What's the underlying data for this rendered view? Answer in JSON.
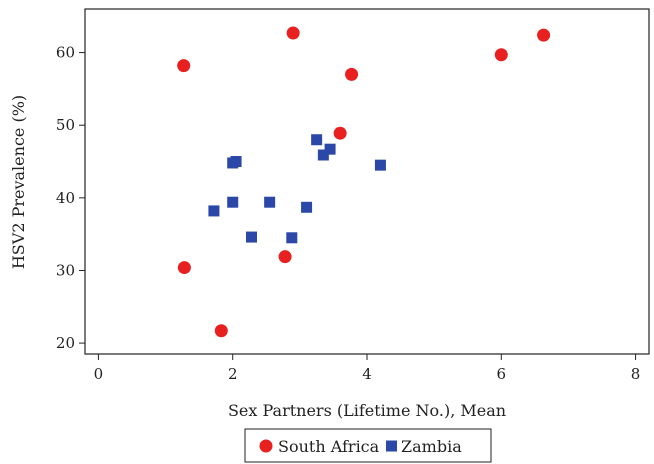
{
  "chart_data": {
    "type": "scatter",
    "title": "",
    "xlabel": "Sex Partners (Lifetime No.), Mean",
    "ylabel": "HSV2 Prevalence (%)",
    "xlim": [
      -0.2,
      8.2
    ],
    "ylim": [
      18.5,
      66
    ],
    "xticks": [
      0,
      2,
      4,
      6,
      8
    ],
    "yticks": [
      20,
      30,
      40,
      50,
      60
    ],
    "grid": false,
    "legend_position": "bottom-center",
    "series": [
      {
        "name": "South Africa",
        "marker": "circle",
        "color": "#e8201f",
        "points": [
          {
            "x": 1.27,
            "y": 58.2
          },
          {
            "x": 2.9,
            "y": 62.7
          },
          {
            "x": 3.77,
            "y": 57.0
          },
          {
            "x": 6.0,
            "y": 59.7
          },
          {
            "x": 6.63,
            "y": 62.4
          },
          {
            "x": 3.6,
            "y": 48.9
          },
          {
            "x": 1.28,
            "y": 30.4
          },
          {
            "x": 2.78,
            "y": 31.9
          },
          {
            "x": 1.83,
            "y": 21.7
          }
        ]
      },
      {
        "name": "Zambia",
        "marker": "square",
        "color": "#2b48a8",
        "points": [
          {
            "x": 3.25,
            "y": 48.0
          },
          {
            "x": 3.45,
            "y": 46.7
          },
          {
            "x": 3.35,
            "y": 45.9
          },
          {
            "x": 2.05,
            "y": 45.0
          },
          {
            "x": 2.0,
            "y": 44.8
          },
          {
            "x": 4.2,
            "y": 44.5
          },
          {
            "x": 2.0,
            "y": 39.4
          },
          {
            "x": 2.55,
            "y": 39.4
          },
          {
            "x": 3.1,
            "y": 38.7
          },
          {
            "x": 1.72,
            "y": 38.2
          },
          {
            "x": 2.28,
            "y": 34.6
          },
          {
            "x": 2.88,
            "y": 34.5
          }
        ]
      }
    ]
  }
}
